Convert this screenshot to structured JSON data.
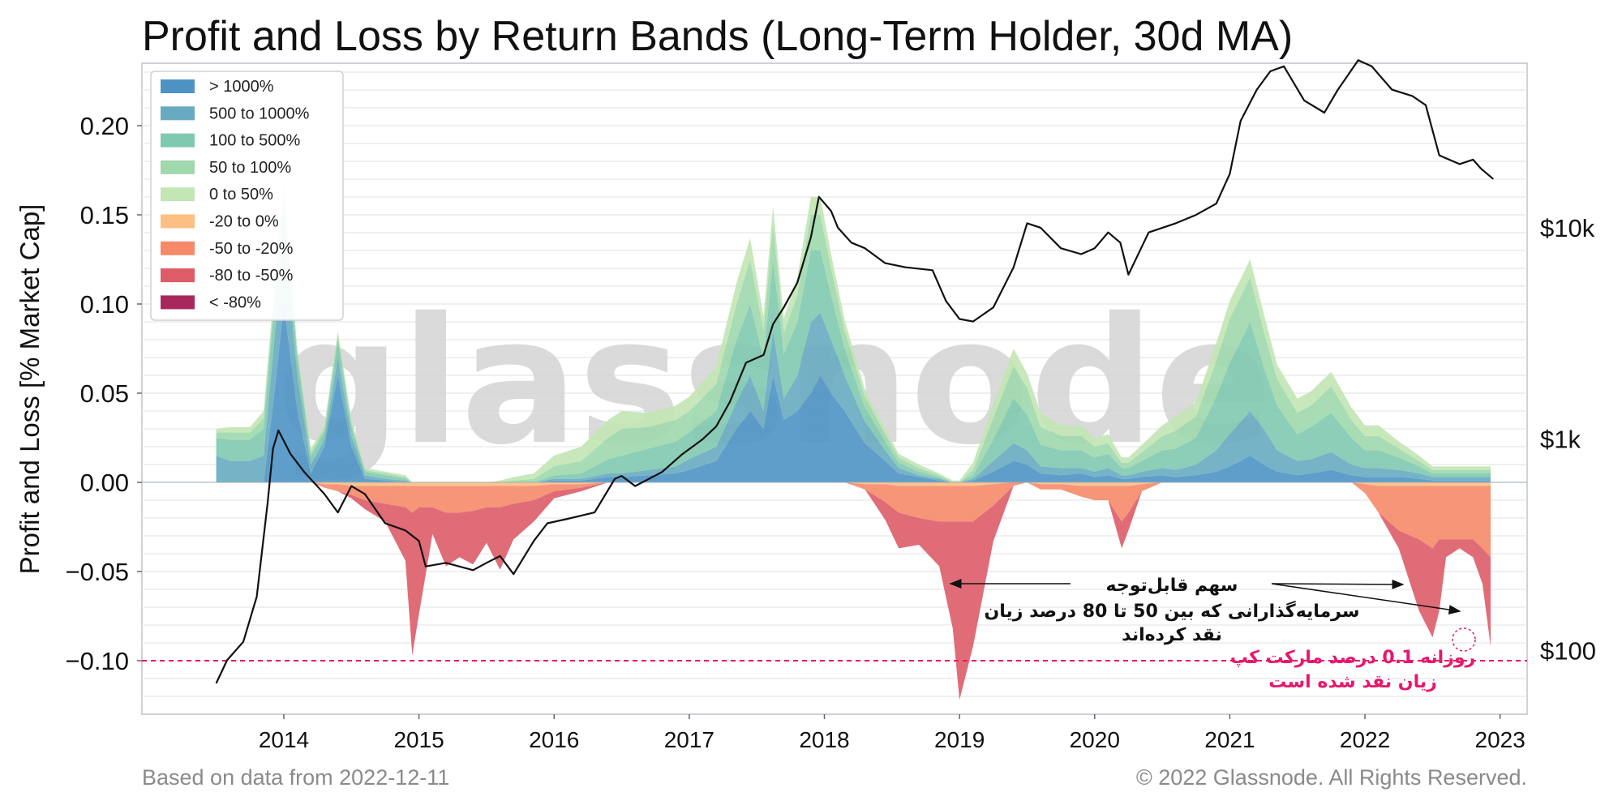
{
  "chart_data": {
    "type": "area",
    "title": "Profit and Loss by Return Bands (Long-Term Holder, 30d MA)",
    "ylabel": "Profit and Loss [% Market Cap]",
    "xlabel": "",
    "ylim": [
      -0.13,
      0.235
    ],
    "y_ticks": [
      "0.20",
      "0.15",
      "0.10",
      "0.05",
      "0.00",
      "−0.05",
      "−0.10"
    ],
    "y_tick_values": [
      0.2,
      0.15,
      0.1,
      0.05,
      0.0,
      -0.05,
      -0.1
    ],
    "xlim": [
      2012.95,
      2023.2
    ],
    "x_ticks": [
      "2014",
      "2015",
      "2016",
      "2017",
      "2018",
      "2019",
      "2020",
      "2021",
      "2022",
      "2023"
    ],
    "x_tick_values": [
      2014,
      2015,
      2016,
      2017,
      2018,
      2019,
      2020,
      2021,
      2022,
      2023
    ],
    "y2_scale": "log",
    "y2lim": [
      50,
      60000
    ],
    "y2_ticks": [
      "$10k",
      "$1k",
      "$100"
    ],
    "y2_tick_values": [
      10000,
      1000,
      100
    ],
    "grid": true,
    "legend_placement": "top-left",
    "legend": [
      {
        "label": "> 1000%",
        "color": "#4e93c4"
      },
      {
        "label": "500 to 1000%",
        "color": "#68abc0"
      },
      {
        "label": "100 to 500%",
        "color": "#7fc9b0"
      },
      {
        "label": "50 to 100%",
        "color": "#9fd8ac"
      },
      {
        "label": "0 to 50%",
        "color": "#c2e6b4"
      },
      {
        "label": "-20 to 0%",
        "color": "#fdbf82"
      },
      {
        "label": "-50 to -20%",
        "color": "#f6896a"
      },
      {
        "label": "-80 to -50%",
        "color": "#dd5c68"
      },
      {
        "label": "< -80%",
        "color": "#a8285e"
      }
    ],
    "x": [
      2013.5,
      2013.6,
      2013.75,
      2013.85,
      2013.93,
      2014.0,
      2014.1,
      2014.2,
      2014.3,
      2014.4,
      2014.5,
      2014.6,
      2014.75,
      2014.9,
      2014.95,
      2015.0,
      2015.1,
      2015.2,
      2015.3,
      2015.4,
      2015.5,
      2015.6,
      2015.7,
      2015.85,
      2016.0,
      2016.2,
      2016.4,
      2016.5,
      2016.7,
      2016.9,
      2017.0,
      2017.2,
      2017.35,
      2017.45,
      2017.55,
      2017.62,
      2017.7,
      2017.8,
      2017.9,
      2017.97,
      2018.05,
      2018.15,
      2018.3,
      2018.45,
      2018.55,
      2018.7,
      2018.85,
      2018.95,
      2019.0,
      2019.1,
      2019.25,
      2019.4,
      2019.5,
      2019.6,
      2019.75,
      2019.9,
      2020.0,
      2020.1,
      2020.2,
      2020.25,
      2020.35,
      2020.5,
      2020.6,
      2020.75,
      2020.9,
      2021.0,
      2021.08,
      2021.15,
      2021.25,
      2021.35,
      2021.5,
      2021.6,
      2021.75,
      2021.9,
      2022.0,
      2022.1,
      2022.25,
      2022.4,
      2022.5,
      2022.55,
      2022.6,
      2022.7,
      2022.8,
      2022.87,
      2022.93
    ],
    "series": [
      {
        "name": "> 1000%",
        "values": [
          0.0,
          0.0,
          0.0,
          0.0,
          0.05,
          0.1,
          0.04,
          0.005,
          0.02,
          0.06,
          0.02,
          0.002,
          0.001,
          0.0,
          0.0,
          0.0,
          0.0,
          0.0,
          0.0,
          0.0,
          0.0,
          0.0,
          0.0,
          0.0,
          0.001,
          0.001,
          0.003,
          0.003,
          0.004,
          0.005,
          0.007,
          0.012,
          0.03,
          0.04,
          0.03,
          0.06,
          0.035,
          0.04,
          0.05,
          0.06,
          0.05,
          0.04,
          0.022,
          0.012,
          0.005,
          0.003,
          0.001,
          0.0,
          0.0,
          0.001,
          0.006,
          0.012,
          0.01,
          0.005,
          0.004,
          0.005,
          0.003,
          0.004,
          0.002,
          0.002,
          0.003,
          0.004,
          0.003,
          0.004,
          0.006,
          0.009,
          0.012,
          0.015,
          0.01,
          0.006,
          0.004,
          0.005,
          0.007,
          0.004,
          0.003,
          0.003,
          0.003,
          0.002,
          0.001,
          0.001,
          0.001,
          0.001,
          0.001,
          0.001,
          0.001
        ]
      },
      {
        "name": "500 to 1000%",
        "values": [
          0.015,
          0.012,
          0.012,
          0.015,
          0.03,
          0.04,
          0.02,
          0.005,
          0.004,
          0.01,
          0.006,
          0.002,
          0.001,
          0.001,
          0.0,
          0.0,
          0.0,
          0.0,
          0.0,
          0.0,
          0.0,
          0.0,
          0.0,
          0.0,
          0.001,
          0.001,
          0.002,
          0.002,
          0.003,
          0.004,
          0.006,
          0.008,
          0.015,
          0.02,
          0.01,
          0.025,
          0.012,
          0.02,
          0.04,
          0.035,
          0.03,
          0.02,
          0.012,
          0.006,
          0.003,
          0.001,
          0.001,
          0.0,
          0.0,
          0.001,
          0.006,
          0.01,
          0.008,
          0.004,
          0.004,
          0.003,
          0.003,
          0.004,
          0.002,
          0.002,
          0.003,
          0.004,
          0.004,
          0.006,
          0.012,
          0.018,
          0.022,
          0.025,
          0.02,
          0.012,
          0.008,
          0.008,
          0.01,
          0.006,
          0.005,
          0.005,
          0.004,
          0.003,
          0.002,
          0.002,
          0.002,
          0.002,
          0.002,
          0.002,
          0.002
        ]
      },
      {
        "name": "100 to 500%",
        "values": [
          0.01,
          0.012,
          0.012,
          0.015,
          0.02,
          0.02,
          0.01,
          0.005,
          0.004,
          0.01,
          0.005,
          0.002,
          0.002,
          0.001,
          0.0,
          0.0,
          0.0,
          0.0,
          0.0,
          0.0,
          0.0,
          0.0,
          0.0,
          0.0,
          0.002,
          0.003,
          0.008,
          0.01,
          0.012,
          0.014,
          0.015,
          0.02,
          0.035,
          0.04,
          0.03,
          0.04,
          0.025,
          0.03,
          0.04,
          0.035,
          0.025,
          0.015,
          0.008,
          0.005,
          0.003,
          0.002,
          0.001,
          0.0,
          0.0,
          0.002,
          0.012,
          0.025,
          0.02,
          0.012,
          0.01,
          0.01,
          0.008,
          0.008,
          0.004,
          0.004,
          0.006,
          0.01,
          0.012,
          0.015,
          0.03,
          0.04,
          0.045,
          0.05,
          0.035,
          0.025,
          0.015,
          0.018,
          0.022,
          0.015,
          0.01,
          0.01,
          0.007,
          0.004,
          0.002,
          0.002,
          0.002,
          0.002,
          0.002,
          0.002,
          0.002
        ]
      },
      {
        "name": "50 to 100%",
        "values": [
          0.003,
          0.004,
          0.004,
          0.006,
          0.006,
          0.005,
          0.003,
          0.002,
          0.002,
          0.003,
          0.002,
          0.001,
          0.001,
          0.001,
          0.0,
          0.0,
          0.0,
          0.0,
          0.0,
          0.0,
          0.0,
          0.0,
          0.001,
          0.002,
          0.005,
          0.007,
          0.012,
          0.015,
          0.012,
          0.012,
          0.012,
          0.015,
          0.02,
          0.025,
          0.015,
          0.02,
          0.012,
          0.015,
          0.02,
          0.02,
          0.015,
          0.01,
          0.006,
          0.004,
          0.003,
          0.002,
          0.001,
          0.0,
          0.0,
          0.003,
          0.012,
          0.018,
          0.015,
          0.01,
          0.008,
          0.008,
          0.006,
          0.006,
          0.003,
          0.003,
          0.005,
          0.008,
          0.01,
          0.012,
          0.02,
          0.025,
          0.025,
          0.025,
          0.02,
          0.015,
          0.012,
          0.012,
          0.015,
          0.01,
          0.008,
          0.008,
          0.005,
          0.003,
          0.002,
          0.002,
          0.002,
          0.002,
          0.002,
          0.002,
          0.002
        ]
      },
      {
        "name": "0 to 50%",
        "values": [
          0.002,
          0.003,
          0.003,
          0.004,
          0.004,
          0.003,
          0.002,
          0.002,
          0.002,
          0.002,
          0.002,
          0.001,
          0.001,
          0.001,
          0.0,
          0.0,
          0.0,
          0.0,
          0.0,
          0.0,
          0.0,
          0.001,
          0.002,
          0.003,
          0.006,
          0.008,
          0.01,
          0.01,
          0.008,
          0.008,
          0.008,
          0.01,
          0.012,
          0.012,
          0.008,
          0.01,
          0.008,
          0.01,
          0.01,
          0.01,
          0.008,
          0.006,
          0.004,
          0.003,
          0.002,
          0.002,
          0.001,
          0.001,
          0.001,
          0.004,
          0.008,
          0.01,
          0.008,
          0.008,
          0.006,
          0.006,
          0.005,
          0.005,
          0.003,
          0.003,
          0.004,
          0.006,
          0.008,
          0.008,
          0.01,
          0.01,
          0.01,
          0.01,
          0.01,
          0.008,
          0.008,
          0.008,
          0.008,
          0.007,
          0.006,
          0.006,
          0.004,
          0.003,
          0.002,
          0.002,
          0.002,
          0.002,
          0.002,
          0.002,
          0.002
        ]
      },
      {
        "name": "-20 to 0%",
        "values": [
          0.0,
          0.0,
          0.0,
          0.0,
          0.0,
          0.0,
          0.0,
          0.0,
          -0.001,
          -0.001,
          -0.002,
          -0.002,
          -0.002,
          -0.002,
          -0.002,
          -0.002,
          -0.002,
          -0.002,
          -0.002,
          -0.002,
          -0.002,
          -0.002,
          -0.002,
          -0.002,
          -0.001,
          -0.001,
          0.0,
          0.0,
          0.0,
          0.0,
          0.0,
          0.0,
          0.0,
          0.0,
          0.0,
          0.0,
          0.0,
          0.0,
          0.0,
          0.0,
          0.0,
          0.0,
          -0.001,
          -0.001,
          -0.002,
          -0.002,
          -0.002,
          -0.002,
          -0.002,
          -0.002,
          -0.001,
          0.0,
          0.0,
          -0.001,
          -0.001,
          -0.002,
          -0.002,
          -0.002,
          -0.002,
          -0.002,
          -0.001,
          0.0,
          0.0,
          0.0,
          0.0,
          0.0,
          0.0,
          0.0,
          0.0,
          0.0,
          0.0,
          0.0,
          0.0,
          0.0,
          -0.001,
          -0.002,
          -0.002,
          -0.002,
          -0.002,
          -0.002,
          -0.002,
          -0.002,
          -0.002,
          -0.002,
          -0.002
        ]
      },
      {
        "name": "-50 to -20%",
        "values": [
          0.0,
          0.0,
          0.0,
          0.0,
          0.0,
          0.0,
          0.0,
          0.0,
          -0.002,
          -0.004,
          -0.005,
          -0.008,
          -0.01,
          -0.012,
          -0.015,
          -0.012,
          -0.012,
          -0.015,
          -0.015,
          -0.014,
          -0.012,
          -0.012,
          -0.01,
          -0.008,
          -0.004,
          -0.002,
          0.0,
          0.0,
          0.0,
          0.0,
          0.0,
          0.0,
          0.0,
          0.0,
          0.0,
          0.0,
          0.0,
          0.0,
          0.0,
          0.0,
          0.0,
          0.0,
          -0.003,
          -0.01,
          -0.015,
          -0.018,
          -0.02,
          -0.02,
          -0.02,
          -0.02,
          -0.012,
          -0.002,
          0.0,
          -0.003,
          -0.003,
          -0.006,
          -0.008,
          -0.008,
          -0.02,
          -0.015,
          -0.004,
          0.0,
          0.0,
          0.0,
          0.0,
          0.0,
          0.0,
          0.0,
          0.0,
          0.0,
          0.0,
          0.0,
          0.0,
          0.0,
          -0.005,
          -0.015,
          -0.025,
          -0.03,
          -0.035,
          -0.03,
          -0.03,
          -0.03,
          -0.03,
          -0.035,
          -0.04
        ]
      },
      {
        "name": "-80 to -50%",
        "values": [
          0.0,
          0.0,
          0.0,
          0.0,
          0.0,
          0.0,
          0.0,
          0.0,
          0.0,
          0.0,
          -0.002,
          -0.005,
          -0.01,
          -0.03,
          -0.08,
          -0.06,
          -0.015,
          -0.03,
          -0.025,
          -0.03,
          -0.02,
          -0.035,
          -0.02,
          -0.012,
          -0.004,
          -0.002,
          0.0,
          0.0,
          0.0,
          0.0,
          0.0,
          0.0,
          0.0,
          0.0,
          0.0,
          0.0,
          0.0,
          0.0,
          0.0,
          0.0,
          0.0,
          0.0,
          0.0,
          -0.01,
          -0.02,
          -0.015,
          -0.025,
          -0.06,
          -0.1,
          -0.07,
          -0.02,
          0.0,
          0.0,
          0.0,
          0.0,
          0.0,
          0.0,
          0.0,
          -0.015,
          -0.01,
          0.0,
          0.0,
          0.0,
          0.0,
          0.0,
          0.0,
          0.0,
          0.0,
          0.0,
          0.0,
          0.0,
          0.0,
          0.0,
          0.0,
          0.0,
          0.0,
          -0.01,
          -0.04,
          -0.05,
          -0.04,
          -0.01,
          -0.005,
          -0.01,
          -0.02,
          -0.05
        ]
      },
      {
        "name": "< -80%",
        "values": [
          0.0,
          0.0,
          0.0,
          0.0,
          0.0,
          0.0,
          0.0,
          0.0,
          0.0,
          0.0,
          0.0,
          0.0,
          0.0,
          0.0,
          0.0,
          0.0,
          0.0,
          0.0,
          0.0,
          0.0,
          0.0,
          0.0,
          0.0,
          0.0,
          0.0,
          0.0,
          0.0,
          0.0,
          0.0,
          0.0,
          0.0,
          0.0,
          0.0,
          0.0,
          0.0,
          0.0,
          0.0,
          0.0,
          0.0,
          0.0,
          0.0,
          0.0,
          0.0,
          0.0,
          0.0,
          0.0,
          0.0,
          0.0,
          0.0,
          0.0,
          0.0,
          0.0,
          0.0,
          0.0,
          0.0,
          0.0,
          0.0,
          0.0,
          0.0,
          0.0,
          0.0,
          0.0,
          0.0,
          0.0,
          0.0,
          0.0,
          0.0,
          0.0,
          0.0,
          0.0,
          0.0,
          0.0,
          0.0,
          0.0,
          0.0,
          0.0,
          0.0,
          0.0,
          0.0,
          0.0,
          0.0,
          0.0,
          0.0,
          0.0,
          0.0
        ]
      }
    ],
    "price": {
      "x": [
        2013.5,
        2013.58,
        2013.7,
        2013.8,
        2013.88,
        2013.92,
        2013.96,
        2014.05,
        2014.15,
        2014.3,
        2014.4,
        2014.5,
        2014.6,
        2014.75,
        2014.9,
        2015.0,
        2015.05,
        2015.2,
        2015.4,
        2015.5,
        2015.6,
        2015.7,
        2015.85,
        2015.95,
        2016.1,
        2016.3,
        2016.45,
        2016.5,
        2016.6,
        2016.8,
        2016.95,
        2017.1,
        2017.2,
        2017.3,
        2017.42,
        2017.55,
        2017.62,
        2017.7,
        2017.8,
        2017.9,
        2017.96,
        2018.05,
        2018.1,
        2018.2,
        2018.3,
        2018.45,
        2018.6,
        2018.8,
        2018.9,
        2019.0,
        2019.1,
        2019.25,
        2019.4,
        2019.5,
        2019.6,
        2019.75,
        2019.9,
        2020.0,
        2020.1,
        2020.19,
        2020.25,
        2020.4,
        2020.6,
        2020.75,
        2020.9,
        2021.0,
        2021.08,
        2021.2,
        2021.3,
        2021.4,
        2021.55,
        2021.7,
        2021.8,
        2021.85,
        2021.95,
        2022.05,
        2022.2,
        2022.35,
        2022.45,
        2022.55,
        2022.7,
        2022.8,
        2022.86,
        2022.95
      ],
      "values": [
        70,
        90,
        110,
        180,
        500,
        900,
        1100,
        850,
        700,
        550,
        450,
        600,
        550,
        400,
        370,
        330,
        250,
        260,
        240,
        260,
        280,
        230,
        330,
        400,
        420,
        450,
        650,
        670,
        600,
        700,
        850,
        1000,
        1150,
        1500,
        2300,
        2500,
        3500,
        4200,
        5500,
        9000,
        14000,
        12000,
        10000,
        8500,
        8000,
        6800,
        6500,
        6300,
        4500,
        3700,
        3600,
        4200,
        6500,
        10500,
        10000,
        8000,
        7500,
        8000,
        9500,
        8500,
        6000,
        9500,
        10500,
        11500,
        13000,
        18000,
        32000,
        45000,
        55000,
        58000,
        40000,
        35000,
        45000,
        50000,
        62000,
        58000,
        45000,
        42000,
        38000,
        22000,
        20000,
        21000,
        19000,
        17000
      ]
    },
    "annotations": {
      "black_text_line1": "سهم قابل‌توجه",
      "black_text_line2": "سرمایه‌گذارانی که بین 50 تا 80 درصد زیان",
      "black_text_line3": "نقد کرده‌اند",
      "pink_text_line1": "روزانه 0.1 درصد مارکت کپ",
      "pink_text_line2": "زیان نقد شده است",
      "colors": {
        "black": "#111111",
        "pink": "#e8176b",
        "price_line": "#111111",
        "reference_line": "#e8176b"
      }
    },
    "watermark": "glassnode",
    "footer_left": "Based on data from 2022-12-11",
    "footer_right": "© 2022 Glassnode. All Rights Reserved."
  }
}
